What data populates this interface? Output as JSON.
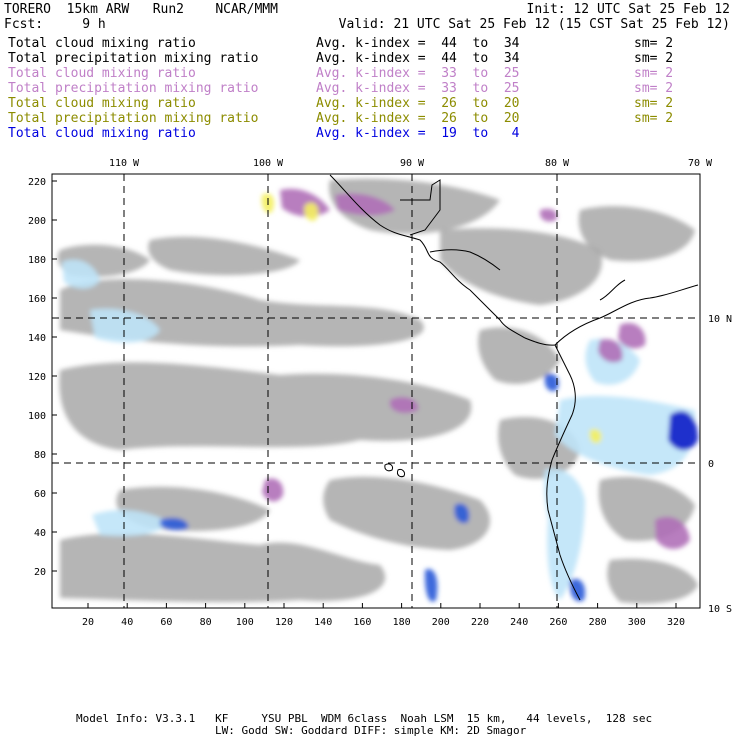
{
  "header": {
    "model": "TORERO  15km ARW   Run2    NCAR/MMM",
    "init": "Init: 12 UTC Sat 25 Feb 12",
    "fcst": "Fcst:     9 h",
    "valid": "Valid: 21 UTC Sat 25 Feb 12 (15 CST Sat 25 Feb 12)"
  },
  "legend": [
    {
      "field": "Total cloud mixing ratio",
      "index": "Avg. k-index =  44  to  34",
      "sm": "sm= 2",
      "color": "#000000"
    },
    {
      "field": "Total precipitation mixing ratio",
      "index": "Avg. k-index =  44  to  34",
      "sm": "sm= 2",
      "color": "#000000"
    },
    {
      "field": "Total cloud mixing ratio",
      "index": "Avg. k-index =  33  to  25",
      "sm": "sm= 2",
      "color": "#c080c8"
    },
    {
      "field": "Total precipitation mixing ratio",
      "index": "Avg. k-index =  33  to  25",
      "sm": "sm= 2",
      "color": "#c080c8"
    },
    {
      "field": "Total cloud mixing ratio",
      "index": "Avg. k-index =  26  to  20",
      "sm": "sm= 2",
      "color": "#8c8c00"
    },
    {
      "field": "Total precipitation mixing ratio",
      "index": "Avg. k-index =  26  to  20",
      "sm": "sm= 2",
      "color": "#8c8c00"
    },
    {
      "field": "Total cloud mixing ratio",
      "index": "Avg. k-index =  19  to   4",
      "sm": "",
      "color": "#0000e0"
    }
  ],
  "map": {
    "lon_labels": [
      "110 W",
      "100 W",
      "90 W",
      "80 W",
      "70 W"
    ],
    "lat_labels": [
      "10 N",
      "0",
      "10 S"
    ],
    "x_ticks": [
      "20",
      "40",
      "60",
      "80",
      "100",
      "120",
      "140",
      "160",
      "180",
      "200",
      "220",
      "240",
      "260",
      "280",
      "300",
      "320"
    ],
    "y_ticks": [
      "20",
      "40",
      "60",
      "80",
      "100",
      "120",
      "140",
      "160",
      "180",
      "200",
      "220"
    ],
    "colors": {
      "gray_cloud": "#a8a8a8",
      "purple": "#b070b8",
      "yellow": "#f4f060",
      "light_blue": "#bfe4f8",
      "blue": "#2a5ad8",
      "dark_blue": "#0a1ec8"
    }
  },
  "footer": {
    "line1": "Model Info: V3.3.1   KF     YSU PBL  WDM 6class  Noah LSM  15 km,   44 levels,  128 sec",
    "line2": "LW: Godd SW: Goddard DIFF: simple KM: 2D Smagor"
  }
}
